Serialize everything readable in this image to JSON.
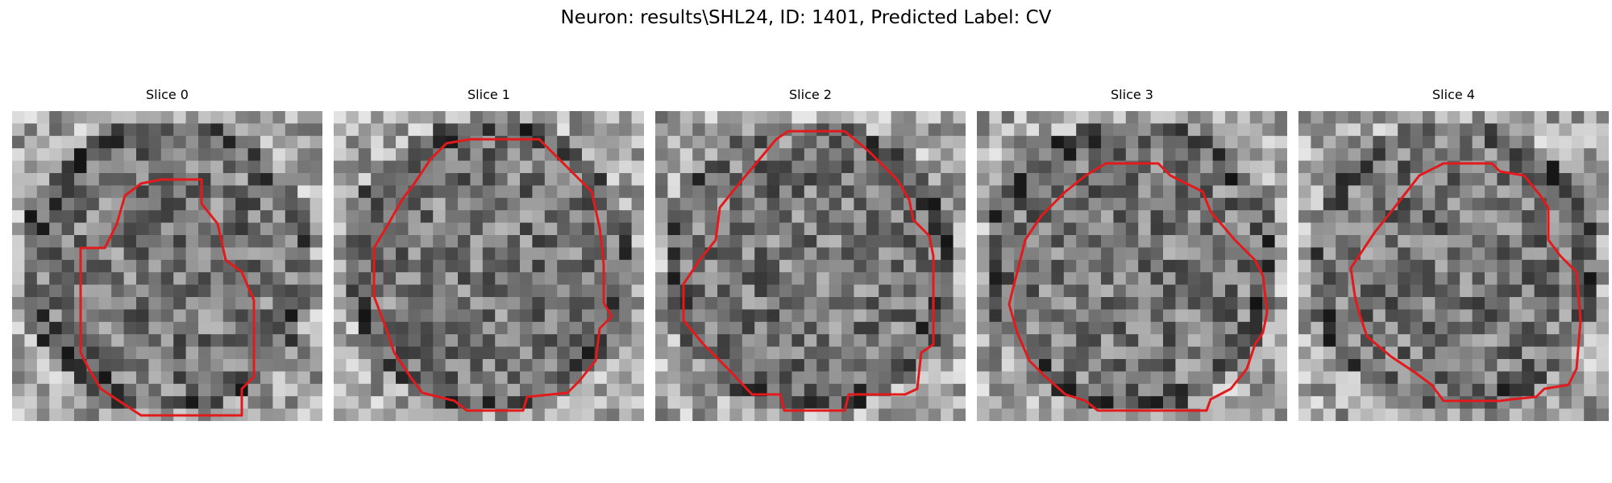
{
  "figure": {
    "title": "Neuron: results\\SHL24, ID: 1401, Predicted Label: CV",
    "contour_color": "#e31a1c",
    "colormap": "grayscale",
    "panels": [
      {
        "title": "Slice 0"
      },
      {
        "title": "Slice 1"
      },
      {
        "title": "Slice 2"
      },
      {
        "title": "Slice 3"
      },
      {
        "title": "Slice 4"
      }
    ]
  }
}
